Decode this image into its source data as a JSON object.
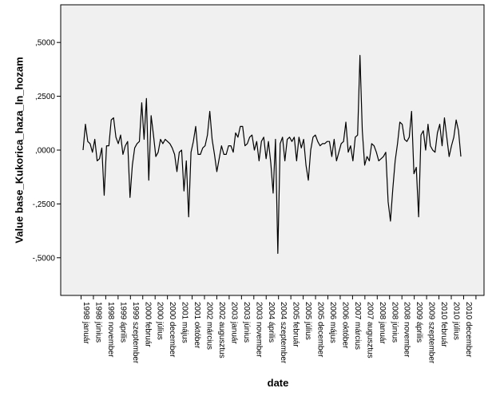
{
  "chart_data": {
    "type": "line",
    "title": "",
    "xlabel": "date",
    "ylabel": "Value base_Kukorica_haza_ln_hozam",
    "ylim": [
      -0.675,
      0.675
    ],
    "yticks": [
      0.5,
      0.25,
      0.0,
      -0.25,
      -0.5
    ],
    "ytick_labels": [
      ",5000",
      ",2500",
      ",0000",
      "-,2500",
      "-,5000"
    ],
    "grid": false,
    "x_tick_labels": [
      "1998 január",
      "1998 június",
      "1998 november",
      "1999 április",
      "1999 szeptember",
      "2000 február",
      "2000 július",
      "2000 december",
      "2001 május",
      "2001 október",
      "2002 március",
      "2002 augusztus",
      "2003 január",
      "2003 június",
      "2003 november",
      "2004 április",
      "2004 szeptember",
      "2005 február",
      "2005 július",
      "2005 december",
      "2006 május",
      "2006 október",
      "2007 március",
      "2007 augusztus",
      "2008 január",
      "2008 június",
      "2008 november",
      "2009 április",
      "2009 szeptember",
      "2010 február",
      "2010 július",
      "2010 december"
    ],
    "series": [
      {
        "name": "",
        "values": [
          0.0,
          0.12,
          0.04,
          0.03,
          -0.01,
          0.05,
          -0.05,
          -0.04,
          0.01,
          -0.21,
          0.02,
          0.02,
          0.14,
          0.15,
          0.06,
          0.03,
          0.07,
          -0.02,
          0.02,
          0.04,
          -0.22,
          -0.07,
          0.01,
          0.03,
          0.04,
          0.22,
          0.05,
          0.24,
          -0.14,
          0.16,
          0.07,
          -0.03,
          -0.01,
          0.05,
          0.03,
          0.05,
          0.04,
          0.03,
          0.01,
          -0.02,
          -0.1,
          -0.01,
          0.0,
          -0.19,
          -0.05,
          -0.31,
          -0.01,
          0.04,
          0.11,
          -0.02,
          -0.02,
          0.01,
          0.02,
          0.07,
          0.18,
          0.05,
          -0.02,
          -0.1,
          -0.04,
          0.02,
          -0.02,
          -0.02,
          0.02,
          0.02,
          -0.01,
          0.08,
          0.06,
          0.11,
          0.11,
          0.02,
          0.03,
          0.06,
          0.07,
          0.0,
          0.04,
          -0.05,
          0.04,
          0.06,
          -0.04,
          0.04,
          -0.06,
          -0.2,
          0.05,
          -0.48,
          0.03,
          0.06,
          -0.05,
          0.05,
          0.06,
          0.04,
          0.06,
          -0.05,
          0.06,
          0.01,
          0.05,
          -0.07,
          -0.14,
          0.0,
          0.06,
          0.07,
          0.04,
          0.02,
          0.03,
          0.03,
          0.04,
          0.04,
          -0.03,
          0.05,
          -0.05,
          -0.01,
          0.03,
          0.04,
          0.13,
          -0.01,
          0.02,
          -0.05,
          0.06,
          0.07,
          0.44,
          0.09,
          -0.07,
          -0.03,
          -0.05,
          0.03,
          0.02,
          -0.01,
          -0.05,
          -0.04,
          -0.03,
          -0.01,
          -0.24,
          -0.33,
          -0.18,
          -0.05,
          0.03,
          0.13,
          0.12,
          0.05,
          0.04,
          0.06,
          0.18,
          -0.11,
          -0.08,
          -0.31,
          0.07,
          0.09,
          0.0,
          0.12,
          0.02,
          0.0,
          -0.01,
          0.08,
          0.12,
          0.02,
          0.15,
          0.06,
          -0.03,
          0.02,
          0.06,
          0.14,
          0.09,
          -0.03
        ]
      }
    ]
  }
}
